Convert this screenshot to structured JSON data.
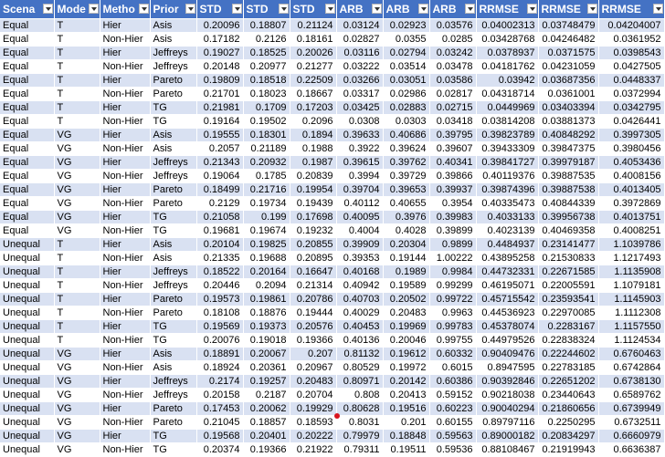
{
  "headers": [
    "Scena",
    "Mode",
    "Metho",
    "Prior",
    "STD",
    "STD",
    "STD",
    "ARB",
    "ARB",
    "ARB",
    "RRMSE",
    "RRMSE",
    "RRMSE"
  ],
  "rows": [
    [
      "Equal",
      "T",
      "Hier",
      "Asis",
      "0.20096",
      "0.18807",
      "0.21124",
      "0.03124",
      "0.02923",
      "0.03576",
      "0.04002313",
      "0.03748479",
      "0.04204007"
    ],
    [
      "Equal",
      "T",
      "Non-Hier",
      "Asis",
      "0.17182",
      "0.2126",
      "0.18161",
      "0.02827",
      "0.0355",
      "0.0285",
      "0.03428768",
      "0.04246482",
      "0.0361952"
    ],
    [
      "Equal",
      "T",
      "Hier",
      "Jeffreys",
      "0.19027",
      "0.18525",
      "0.20026",
      "0.03116",
      "0.02794",
      "0.03242",
      "0.0378937",
      "0.0371575",
      "0.0398543"
    ],
    [
      "Equal",
      "T",
      "Non-Hier",
      "Jeffreys",
      "0.20148",
      "0.20977",
      "0.21277",
      "0.03222",
      "0.03514",
      "0.03478",
      "0.04181762",
      "0.04231059",
      "0.0427505"
    ],
    [
      "Equal",
      "T",
      "Hier",
      "Pareto",
      "0.19809",
      "0.18518",
      "0.22509",
      "0.03266",
      "0.03051",
      "0.03586",
      "0.03942",
      "0.03687356",
      "0.0448337"
    ],
    [
      "Equal",
      "T",
      "Non-Hier",
      "Pareto",
      "0.21701",
      "0.18023",
      "0.18667",
      "0.03317",
      "0.02986",
      "0.02817",
      "0.04318714",
      "0.0361001",
      "0.0372994"
    ],
    [
      "Equal",
      "T",
      "Hier",
      "TG",
      "0.21981",
      "0.1709",
      "0.17203",
      "0.03425",
      "0.02883",
      "0.02715",
      "0.0449969",
      "0.03403394",
      "0.0342795"
    ],
    [
      "Equal",
      "T",
      "Non-Hier",
      "TG",
      "0.19164",
      "0.19502",
      "0.2096",
      "0.0308",
      "0.0303",
      "0.03418",
      "0.03814208",
      "0.03881373",
      "0.0426441"
    ],
    [
      "Equal",
      "VG",
      "Hier",
      "Asis",
      "0.19555",
      "0.18301",
      "0.1894",
      "0.39633",
      "0.40686",
      "0.39795",
      "0.39823789",
      "0.40848292",
      "0.3997305"
    ],
    [
      "Equal",
      "VG",
      "Non-Hier",
      "Asis",
      "0.2057",
      "0.21189",
      "0.1988",
      "0.3922",
      "0.39624",
      "0.39607",
      "0.39433309",
      "0.39847375",
      "0.3980456"
    ],
    [
      "Equal",
      "VG",
      "Hier",
      "Jeffreys",
      "0.21343",
      "0.20932",
      "0.1987",
      "0.39615",
      "0.39762",
      "0.40341",
      "0.39841727",
      "0.39979187",
      "0.4053436"
    ],
    [
      "Equal",
      "VG",
      "Non-Hier",
      "Jeffreys",
      "0.19064",
      "0.1785",
      "0.20839",
      "0.3994",
      "0.39729",
      "0.39866",
      "0.40119376",
      "0.39887535",
      "0.4008156"
    ],
    [
      "Equal",
      "VG",
      "Hier",
      "Pareto",
      "0.18499",
      "0.21716",
      "0.19954",
      "0.39704",
      "0.39653",
      "0.39937",
      "0.39874396",
      "0.39887538",
      "0.4013405"
    ],
    [
      "Equal",
      "VG",
      "Non-Hier",
      "Pareto",
      "0.2129",
      "0.19734",
      "0.19439",
      "0.40112",
      "0.40655",
      "0.3954",
      "0.40335473",
      "0.40844339",
      "0.3972869"
    ],
    [
      "Equal",
      "VG",
      "Hier",
      "TG",
      "0.21058",
      "0.199",
      "0.17698",
      "0.40095",
      "0.3976",
      "0.39983",
      "0.4033133",
      "0.39956738",
      "0.4013751"
    ],
    [
      "Equal",
      "VG",
      "Non-Hier",
      "TG",
      "0.19681",
      "0.19674",
      "0.19232",
      "0.4004",
      "0.4028",
      "0.39899",
      "0.4023139",
      "0.40469358",
      "0.4008251"
    ],
    [
      "Unequal",
      "T",
      "Hier",
      "Asis",
      "0.20104",
      "0.19825",
      "0.20855",
      "0.39909",
      "0.20304",
      "0.9899",
      "0.4484937",
      "0.23141477",
      "1.1039786"
    ],
    [
      "Unequal",
      "T",
      "Non-Hier",
      "Asis",
      "0.21335",
      "0.19688",
      "0.20895",
      "0.39353",
      "0.19144",
      "1.00222",
      "0.43895258",
      "0.21530833",
      "1.1217493"
    ],
    [
      "Unequal",
      "T",
      "Hier",
      "Jeffreys",
      "0.18522",
      "0.20164",
      "0.16647",
      "0.40168",
      "0.1989",
      "0.9984",
      "0.44732331",
      "0.22671585",
      "1.1135908"
    ],
    [
      "Unequal",
      "T",
      "Non-Hier",
      "Jeffreys",
      "0.20446",
      "0.2094",
      "0.21314",
      "0.40942",
      "0.19589",
      "0.99299",
      "0.46195071",
      "0.22005591",
      "1.1079181"
    ],
    [
      "Unequal",
      "T",
      "Hier",
      "Pareto",
      "0.19573",
      "0.19861",
      "0.20786",
      "0.40703",
      "0.20502",
      "0.99722",
      "0.45715542",
      "0.23593541",
      "1.1145903"
    ],
    [
      "Unequal",
      "T",
      "Non-Hier",
      "Pareto",
      "0.18108",
      "0.18876",
      "0.19444",
      "0.40029",
      "0.20483",
      "0.9963",
      "0.44536923",
      "0.22970085",
      "1.1112308"
    ],
    [
      "Unequal",
      "T",
      "Hier",
      "TG",
      "0.19569",
      "0.19373",
      "0.20576",
      "0.40453",
      "0.19969",
      "0.99783",
      "0.45378074",
      "0.2283167",
      "1.1157550"
    ],
    [
      "Unequal",
      "T",
      "Non-Hier",
      "TG",
      "0.20076",
      "0.19018",
      "0.19366",
      "0.40136",
      "0.20046",
      "0.99755",
      "0.44979526",
      "0.22838324",
      "1.1124534"
    ],
    [
      "Unequal",
      "VG",
      "Hier",
      "Asis",
      "0.18891",
      "0.20067",
      "0.207",
      "0.81132",
      "0.19612",
      "0.60332",
      "0.90409476",
      "0.22244602",
      "0.6760463"
    ],
    [
      "Unequal",
      "VG",
      "Non-Hier",
      "Asis",
      "0.18924",
      "0.20361",
      "0.20967",
      "0.80529",
      "0.19972",
      "0.6015",
      "0.8947595",
      "0.22783185",
      "0.6742864"
    ],
    [
      "Unequal",
      "VG",
      "Hier",
      "Jeffreys",
      "0.2174",
      "0.19257",
      "0.20483",
      "0.80971",
      "0.20142",
      "0.60386",
      "0.90392846",
      "0.22651202",
      "0.6738130"
    ],
    [
      "Unequal",
      "VG",
      "Non-Hier",
      "Jeffreys",
      "0.20158",
      "0.2187",
      "0.20704",
      "0.808",
      "0.20413",
      "0.59152",
      "0.90218038",
      "0.23440643",
      "0.6589762"
    ],
    [
      "Unequal",
      "VG",
      "Hier",
      "Pareto",
      "0.17453",
      "0.20062",
      "0.19929",
      "0.80628",
      "0.19516",
      "0.60223",
      "0.90040294",
      "0.21860656",
      "0.6739949"
    ],
    [
      "Unequal",
      "VG",
      "Non-Hier",
      "Pareto",
      "0.21045",
      "0.18857",
      "0.18593",
      "0.8031",
      "0.201",
      "0.60155",
      "0.89797116",
      "0.2250295",
      "0.6732511"
    ],
    [
      "Unequal",
      "VG",
      "Hier",
      "TG",
      "0.19568",
      "0.20401",
      "0.20222",
      "0.79979",
      "0.18848",
      "0.59563",
      "0.89000182",
      "0.20834297",
      "0.6660979"
    ],
    [
      "Unequal",
      "VG",
      "Non-Hier",
      "TG",
      "0.20374",
      "0.19366",
      "0.21922",
      "0.79311",
      "0.19511",
      "0.59536",
      "0.88108467",
      "0.21919943",
      "0.6636387"
    ]
  ]
}
